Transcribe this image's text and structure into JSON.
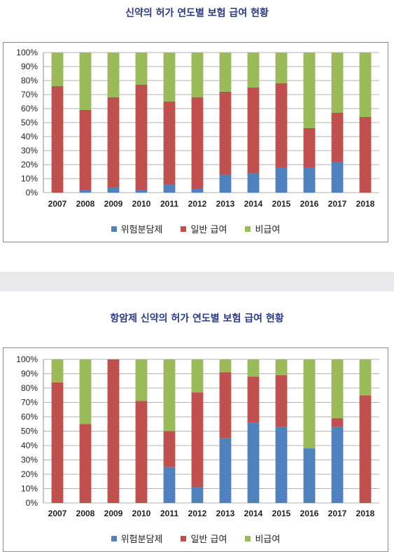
{
  "chart_data": [
    {
      "type": "bar",
      "stacked": true,
      "title": "신약의 허가 연도별 보험 급여 현황",
      "categories": [
        "2007",
        "2008",
        "2009",
        "2010",
        "2011",
        "2012",
        "2013",
        "2014",
        "2015",
        "2016",
        "2017",
        "2018"
      ],
      "ylim": [
        0,
        100
      ],
      "yticks": [
        "0%",
        "10%",
        "20%",
        "30%",
        "40%",
        "50%",
        "60%",
        "70%",
        "80%",
        "90%",
        "100%"
      ],
      "grid": true,
      "legend_position": "bottom",
      "series": [
        {
          "name": "위험분담제",
          "color": "#4f81bd",
          "values": [
            0,
            2,
            4,
            2,
            6,
            3,
            13,
            14,
            18,
            18,
            22,
            0
          ]
        },
        {
          "name": "일반 급여",
          "color": "#c0504d",
          "values": [
            76,
            57,
            64,
            75,
            59,
            65,
            59,
            61,
            60,
            28,
            35,
            54
          ]
        },
        {
          "name": "비급여",
          "color": "#9bbb59",
          "values": [
            24,
            41,
            32,
            23,
            35,
            32,
            28,
            25,
            22,
            54,
            43,
            46
          ]
        }
      ]
    },
    {
      "type": "bar",
      "stacked": true,
      "title": "항암제 신약의 허가 연도별 보험 급여 현황",
      "categories": [
        "2007",
        "2008",
        "2009",
        "2010",
        "2011",
        "2012",
        "2013",
        "2014",
        "2015",
        "2016",
        "2017",
        "2018"
      ],
      "ylim": [
        0,
        100
      ],
      "yticks": [
        "0%",
        "10%",
        "20%",
        "30%",
        "40%",
        "50%",
        "60%",
        "70%",
        "80%",
        "90%",
        "100%"
      ],
      "grid": true,
      "legend_position": "bottom",
      "series": [
        {
          "name": "위험분담제",
          "color": "#4f81bd",
          "values": [
            0,
            0,
            0,
            0,
            25,
            11,
            45,
            56,
            53,
            38,
            53,
            0
          ]
        },
        {
          "name": "일반 급여",
          "color": "#c0504d",
          "values": [
            84,
            55,
            100,
            71,
            25,
            66,
            46,
            32,
            36,
            0,
            6,
            75
          ]
        },
        {
          "name": "비급여",
          "color": "#9bbb59",
          "values": [
            16,
            45,
            0,
            29,
            50,
            23,
            9,
            12,
            11,
            62,
            41,
            25
          ]
        }
      ]
    }
  ]
}
